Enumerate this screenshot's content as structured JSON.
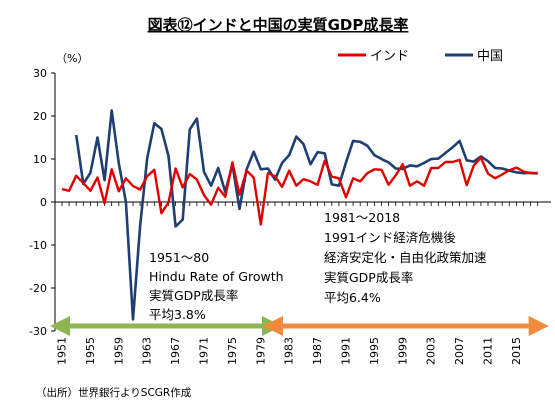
{
  "chart_data": {
    "type": "line",
    "title": "図表⑫インドと中国の実質GDP成長率",
    "y_unit": "（%）",
    "ylim": [
      -30,
      30
    ],
    "y_ticks": [
      "30",
      "20",
      "10",
      "0",
      "-10",
      "-20",
      "-30"
    ],
    "x_tick_labels": [
      "1951",
      "1955",
      "1959",
      "1963",
      "1967",
      "1971",
      "1975",
      "1979",
      "1983",
      "1987",
      "1991",
      "1995",
      "1999",
      "2003",
      "2007",
      "2011",
      "2015"
    ],
    "x": [
      1951,
      1952,
      1953,
      1954,
      1955,
      1956,
      1957,
      1958,
      1959,
      1960,
      1961,
      1962,
      1963,
      1964,
      1965,
      1966,
      1967,
      1968,
      1969,
      1970,
      1971,
      1972,
      1973,
      1974,
      1975,
      1976,
      1977,
      1978,
      1979,
      1980,
      1981,
      1982,
      1983,
      1984,
      1985,
      1986,
      1987,
      1988,
      1989,
      1990,
      1991,
      1992,
      1993,
      1994,
      1995,
      1996,
      1997,
      1998,
      1999,
      2000,
      2001,
      2002,
      2003,
      2004,
      2005,
      2006,
      2007,
      2008,
      2009,
      2010,
      2011,
      2012,
      2013,
      2014,
      2015,
      2016,
      2017,
      2018
    ],
    "grid": false,
    "legend_position": "top-right",
    "series": [
      {
        "name": "インド",
        "color": "#e00000",
        "values": [
          3.0,
          2.6,
          6.1,
          4.4,
          2.6,
          5.7,
          -0.3,
          7.6,
          2.5,
          5.5,
          3.7,
          2.9,
          6.0,
          7.5,
          -2.6,
          -0.1,
          7.8,
          3.4,
          6.5,
          5.2,
          1.6,
          -0.6,
          3.3,
          1.2,
          9.2,
          1.7,
          7.3,
          5.7,
          -5.2,
          6.7,
          6.0,
          3.5,
          7.3,
          3.8,
          5.3,
          4.8,
          4.0,
          9.6,
          5.9,
          5.5,
          1.1,
          5.5,
          4.8,
          6.7,
          7.6,
          7.5,
          4.0,
          6.2,
          8.8,
          3.8,
          4.8,
          3.8,
          7.9,
          7.9,
          9.3,
          9.3,
          9.8,
          3.9,
          8.5,
          10.3,
          6.6,
          5.5,
          6.4,
          7.4,
          8.0,
          7.1,
          6.7,
          6.8
        ]
      },
      {
        "name": "中国",
        "color": "#1f3f73",
        "values": [
          null,
          null,
          15.6,
          4.2,
          6.8,
          15.0,
          5.1,
          21.3,
          9.0,
          0.0,
          -27.3,
          -5.6,
          10.2,
          18.3,
          17.0,
          10.7,
          -5.7,
          -4.1,
          16.9,
          19.4,
          7.0,
          3.8,
          7.9,
          2.3,
          8.7,
          -1.6,
          7.6,
          11.7,
          7.6,
          7.8,
          5.2,
          9.1,
          10.9,
          15.2,
          13.5,
          8.8,
          11.6,
          11.3,
          4.1,
          3.8,
          9.2,
          14.2,
          14.0,
          13.1,
          10.9,
          10.0,
          9.2,
          7.8,
          7.7,
          8.5,
          8.3,
          9.1,
          10.0,
          10.1,
          11.4,
          12.7,
          14.2,
          9.7,
          9.4,
          10.6,
          9.5,
          7.9,
          7.8,
          7.3,
          6.9,
          6.7,
          6.8,
          6.6
        ]
      }
    ],
    "annotations": [
      {
        "lines": [
          "1951～80",
          "Hindu Rate of Growth",
          "実質GDP成長率",
          "平均3.8%"
        ],
        "x_range": [
          1951,
          1980
        ],
        "arrow_color": "#8db551"
      },
      {
        "lines": [
          "1981～2018",
          "1991インド経済危機後",
          "経済安定化・自由化政策加速",
          "実質GDP成長率",
          "平均6.4%"
        ],
        "x_range": [
          1981,
          2018
        ],
        "arrow_color": "#f28a3c"
      }
    ]
  },
  "source_note": "（出所）世界銀行よりSCGR作成"
}
